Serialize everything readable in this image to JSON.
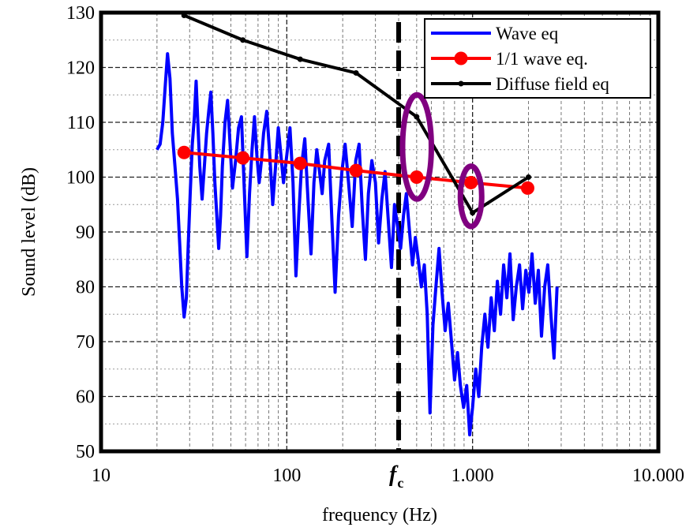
{
  "chart_data": {
    "type": "line",
    "title": "",
    "xlabel": "frequency (Hz)",
    "ylabel": "Sound level (dB)",
    "x_scale": "log",
    "xlim": [
      10,
      10000
    ],
    "ylim": [
      50,
      130
    ],
    "x_ticks": [
      {
        "value": 10,
        "label": "10"
      },
      {
        "value": 100,
        "label": "100"
      },
      {
        "value": 1000,
        "label": "1.000"
      },
      {
        "value": 10000,
        "label": "10.000"
      }
    ],
    "y_ticks": [
      50,
      60,
      70,
      80,
      90,
      100,
      110,
      120,
      130
    ],
    "grid": true,
    "legend_position": "top-right",
    "critical_frequency": {
      "value": 400,
      "label": "f",
      "subscript": "c"
    },
    "series": [
      {
        "name": "Wave eq",
        "color": "#0000ff",
        "style": "line",
        "points": [
          [
            20,
            105
          ],
          [
            20.8,
            106
          ],
          [
            21.5,
            110
          ],
          [
            22.2,
            117
          ],
          [
            22.8,
            122.5
          ],
          [
            23.5,
            118
          ],
          [
            24.2,
            108
          ],
          [
            25,
            102
          ],
          [
            25.8,
            96
          ],
          [
            26.5,
            88
          ],
          [
            27.2,
            80
          ],
          [
            28,
            74.5
          ],
          [
            28.8,
            78
          ],
          [
            29.5,
            88
          ],
          [
            30.2,
            97
          ],
          [
            31,
            106
          ],
          [
            31.8,
            111
          ],
          [
            32.5,
            117.5
          ],
          [
            33.2,
            110
          ],
          [
            34,
            102
          ],
          [
            35,
            96
          ],
          [
            36,
            102
          ],
          [
            37,
            108
          ],
          [
            38,
            112
          ],
          [
            39,
            115.5
          ],
          [
            40,
            108
          ],
          [
            41,
            99
          ],
          [
            42,
            93
          ],
          [
            43,
            87
          ],
          [
            44,
            93
          ],
          [
            45,
            102
          ],
          [
            46.5,
            110
          ],
          [
            48,
            114
          ],
          [
            49.5,
            106
          ],
          [
            51,
            98
          ],
          [
            53,
            103
          ],
          [
            55,
            109
          ],
          [
            57,
            111
          ],
          [
            59,
            98
          ],
          [
            61,
            85.5
          ],
          [
            63,
            97
          ],
          [
            65,
            105
          ],
          [
            67,
            111
          ],
          [
            69,
            104
          ],
          [
            71,
            99
          ],
          [
            73,
            103
          ],
          [
            75,
            108
          ],
          [
            78,
            112
          ],
          [
            81,
            104
          ],
          [
            84,
            95
          ],
          [
            87,
            102
          ],
          [
            90,
            109
          ],
          [
            93,
            104
          ],
          [
            96,
            99
          ],
          [
            100,
            104
          ],
          [
            104,
            109
          ],
          [
            108,
            99
          ],
          [
            112,
            82
          ],
          [
            116,
            93
          ],
          [
            120,
            102
          ],
          [
            125,
            107
          ],
          [
            130,
            96
          ],
          [
            135,
            86
          ],
          [
            140,
            99
          ],
          [
            145,
            105
          ],
          [
            150,
            101
          ],
          [
            155,
            97
          ],
          [
            160,
            103
          ],
          [
            168,
            106
          ],
          [
            175,
            92
          ],
          [
            182,
            79
          ],
          [
            190,
            93
          ],
          [
            198,
            101
          ],
          [
            206,
            106
          ],
          [
            215,
            99
          ],
          [
            225,
            91
          ],
          [
            235,
            103
          ],
          [
            245,
            106
          ],
          [
            255,
            94
          ],
          [
            265,
            85
          ],
          [
            275,
            97
          ],
          [
            287,
            103
          ],
          [
            300,
            99
          ],
          [
            312,
            88
          ],
          [
            325,
            96
          ],
          [
            338,
            101
          ],
          [
            352,
            92
          ],
          [
            366,
            83.5
          ],
          [
            380,
            95
          ],
          [
            395,
            91
          ],
          [
            410,
            87
          ],
          [
            425,
            93
          ],
          [
            440,
            97
          ],
          [
            458,
            90
          ],
          [
            475,
            84
          ],
          [
            492,
            89
          ],
          [
            510,
            85
          ],
          [
            530,
            80
          ],
          [
            550,
            84
          ],
          [
            570,
            75
          ],
          [
            590,
            57
          ],
          [
            612,
            73
          ],
          [
            635,
            80
          ],
          [
            660,
            87
          ],
          [
            685,
            79
          ],
          [
            712,
            72
          ],
          [
            740,
            77
          ],
          [
            770,
            70
          ],
          [
            800,
            63
          ],
          [
            830,
            68
          ],
          [
            860,
            62
          ],
          [
            895,
            58
          ],
          [
            930,
            62
          ],
          [
            965,
            53
          ],
          [
            1000,
            58
          ],
          [
            1040,
            65
          ],
          [
            1080,
            60
          ],
          [
            1120,
            69
          ],
          [
            1165,
            75
          ],
          [
            1210,
            69
          ],
          [
            1260,
            78
          ],
          [
            1310,
            72
          ],
          [
            1360,
            81
          ],
          [
            1415,
            75
          ],
          [
            1470,
            84
          ],
          [
            1530,
            78
          ],
          [
            1590,
            86
          ],
          [
            1655,
            74
          ],
          [
            1720,
            80
          ],
          [
            1790,
            84
          ],
          [
            1860,
            76
          ],
          [
            1935,
            83
          ],
          [
            2010,
            79
          ],
          [
            2090,
            86
          ],
          [
            2175,
            77
          ],
          [
            2260,
            83
          ],
          [
            2350,
            71
          ],
          [
            2445,
            80
          ],
          [
            2540,
            84
          ],
          [
            2640,
            75
          ],
          [
            2745,
            67
          ],
          [
            2850,
            80
          ]
        ]
      },
      {
        "name": "1/1 wave eq.",
        "color": "#ff0000",
        "style": "line-marker",
        "points": [
          [
            28,
            104.5
          ],
          [
            58,
            103.5
          ],
          [
            118,
            102.5
          ],
          [
            236,
            101.2
          ],
          [
            500,
            100
          ],
          [
            980,
            99
          ],
          [
            1980,
            98
          ]
        ]
      },
      {
        "name": "Diffuse field eq",
        "color": "#000000",
        "style": "line-small-marker",
        "points": [
          [
            28,
            129.5
          ],
          [
            58,
            125
          ],
          [
            118,
            121.5
          ],
          [
            236,
            119
          ],
          [
            500,
            111
          ],
          [
            1000,
            93.5
          ],
          [
            2000,
            100
          ]
        ]
      }
    ],
    "annotations": [
      {
        "type": "ellipse",
        "color": "#800080",
        "center": [
          500,
          105
        ],
        "x_span": [
          420,
          600
        ],
        "y_span": [
          96,
          115
        ]
      },
      {
        "type": "ellipse",
        "color": "#800080",
        "center": [
          980,
          96.5
        ],
        "x_span": [
          860,
          1120
        ],
        "y_span": [
          91,
          102
        ]
      }
    ]
  }
}
